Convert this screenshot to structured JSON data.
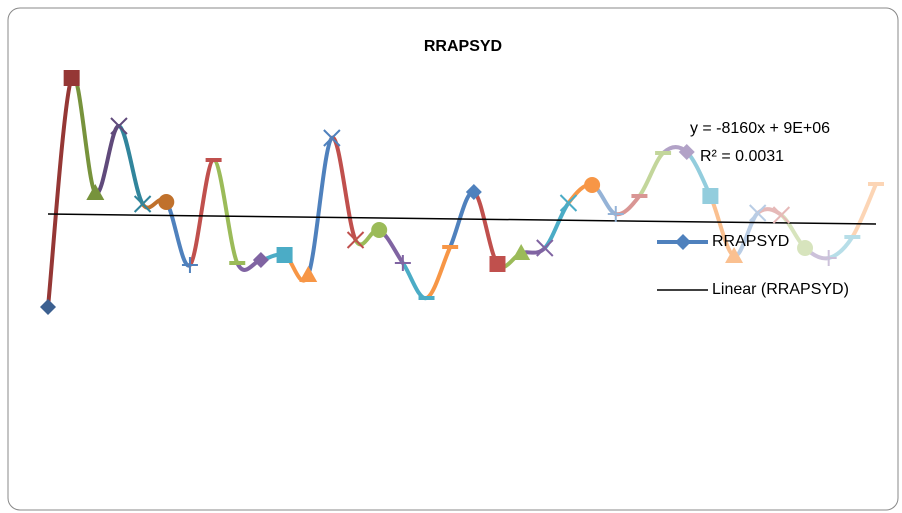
{
  "chart_data": {
    "type": "line",
    "title": "RRAPSYD",
    "ylim": [
      0,
      300
    ],
    "series": [
      {
        "name": "RRAPSYD",
        "color": "#4f81bd",
        "smooth": true,
        "values": [
          33,
          262,
          147,
          214,
          136,
          138,
          75,
          180,
          77,
          80,
          85,
          65,
          202,
          100,
          110,
          77,
          42,
          93,
          148,
          76,
          87,
          92,
          137,
          155,
          126,
          144,
          187,
          188,
          144,
          84,
          127,
          125,
          92,
          82,
          103,
          156
        ],
        "point_colors": [
          "#3c6090",
          "#953735",
          "#77933c",
          "#604a7b",
          "#31859c",
          "#c0712c",
          "#4f81bd",
          "#c0504d",
          "#9bbb59",
          "#8064a2",
          "#4bacc6",
          "#f79646",
          "#4f81bd",
          "#c0504d",
          "#9bbb59",
          "#8064a2",
          "#4bacc6",
          "#f79646",
          "#4f81bd",
          "#c0504d",
          "#9bbb59",
          "#8064a2",
          "#4bacc6",
          "#f79646",
          "#95b3d7",
          "#d99694",
          "#c3d69b",
          "#b2a2c7",
          "#93cddd",
          "#fac090",
          "#b9cde5",
          "#e6b9b8",
          "#d7e4bd",
          "#ccc1da",
          "#b7dee8",
          "#fcd5b5"
        ],
        "markers": [
          "diamond",
          "square",
          "triangle",
          "x",
          "x",
          "circle",
          "plus",
          "dash",
          "dash"
        ]
      }
    ],
    "trendline": {
      "name": "Linear (RRAPSYD)",
      "color": "#000000",
      "values": [
        126,
        116
      ],
      "equation": "y = -8160x + 9E+06",
      "r_squared": "R² = 0.0031"
    },
    "legend": "right"
  }
}
